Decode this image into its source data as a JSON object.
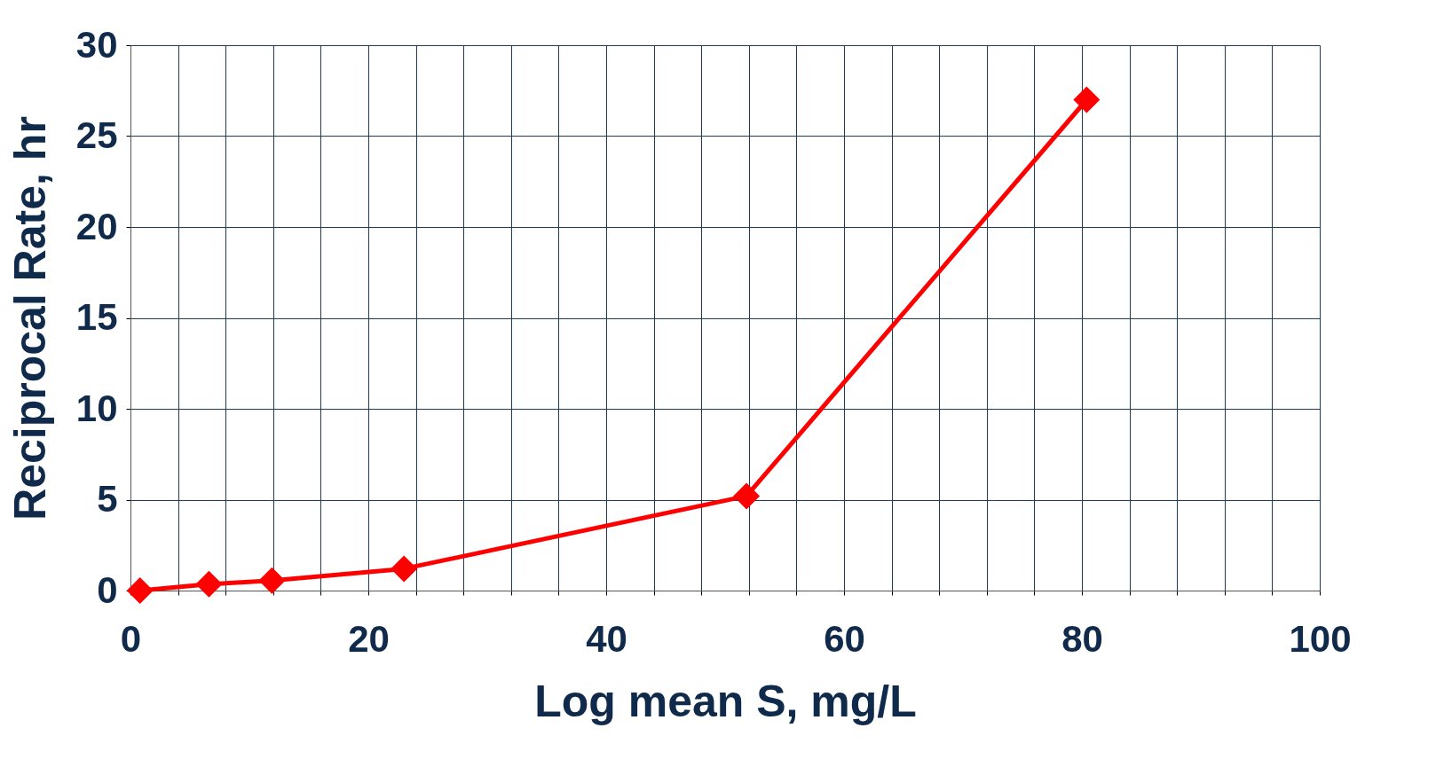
{
  "chart_data": {
    "type": "line",
    "xlabel": "Log mean S, mg/L",
    "ylabel": "Reciprocal Rate, hr",
    "x": [
      0.8,
      6.6,
      11.9,
      23.0,
      51.8,
      80.4
    ],
    "series": [
      {
        "color": "#ff0000",
        "values": [
          0,
          0.35,
          0.55,
          1.2,
          5.2,
          27.0
        ]
      }
    ],
    "xlim": [
      0,
      100
    ],
    "xticks": [
      0,
      {
        "value": 4,
        "label": null
      },
      {
        "value": 8,
        "label": null
      },
      {
        "value": 12,
        "label": null
      },
      {
        "value": 16,
        "label": null
      },
      20,
      {
        "value": 24,
        "label": null
      },
      {
        "value": 28,
        "label": null
      },
      {
        "value": 32,
        "label": null
      },
      {
        "value": 36,
        "label": null
      },
      40,
      {
        "value": 44,
        "label": null
      },
      {
        "value": 48,
        "label": null
      },
      {
        "value": 52,
        "label": null
      },
      {
        "value": 56,
        "label": null
      },
      60,
      {
        "value": 64,
        "label": null
      },
      {
        "value": 68,
        "label": null
      },
      {
        "value": 72,
        "label": null
      },
      {
        "value": 76,
        "label": null
      },
      80,
      {
        "value": 84,
        "label": null
      },
      {
        "value": 88,
        "label": null
      },
      {
        "value": 92,
        "label": null
      },
      {
        "value": 96,
        "label": null
      },
      100
    ],
    "ylim": [
      0,
      30
    ],
    "yticks": [
      0,
      5,
      10,
      15,
      20,
      25,
      30
    ],
    "grid": true,
    "marker": "diamond",
    "line_style": "solid",
    "legend": false
  }
}
